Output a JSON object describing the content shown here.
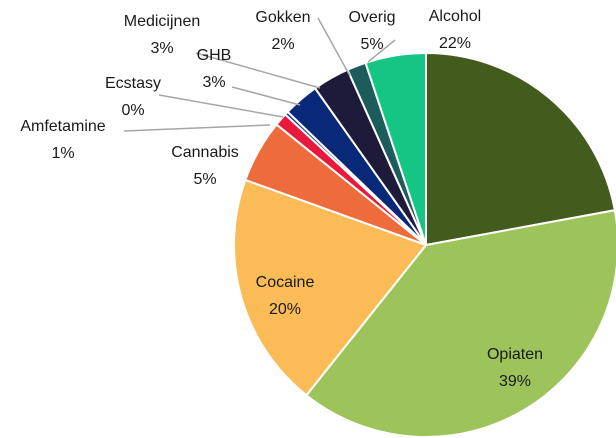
{
  "chart_data": {
    "type": "pie",
    "title": "",
    "categories": [
      "Alcohol",
      "Opiaten",
      "Cocaine",
      "Cannabis",
      "Amfetamine",
      "Ecstasy",
      "GHB",
      "Medicijnen",
      "Gokken",
      "Overig"
    ],
    "values": [
      22,
      39,
      20,
      5,
      1,
      0,
      3,
      3,
      2,
      5
    ],
    "value_labels": [
      "22%",
      "39%",
      "20%",
      "5%",
      "1%",
      "0%",
      "3%",
      "3%",
      "2%",
      "5%"
    ],
    "display_values": [
      22.1,
      38.6,
      19.8,
      5.3,
      1.1,
      0.3,
      3.0,
      3.1,
      1.6,
      5.1
    ],
    "colors": [
      "#435C1E",
      "#9DC45A",
      "#FBBC57",
      "#EE6C3C",
      "#E8193C",
      "#123F96",
      "#08287A",
      "#1E1A3A",
      "#1C5D5C",
      "#14C584"
    ],
    "legend": "none"
  }
}
